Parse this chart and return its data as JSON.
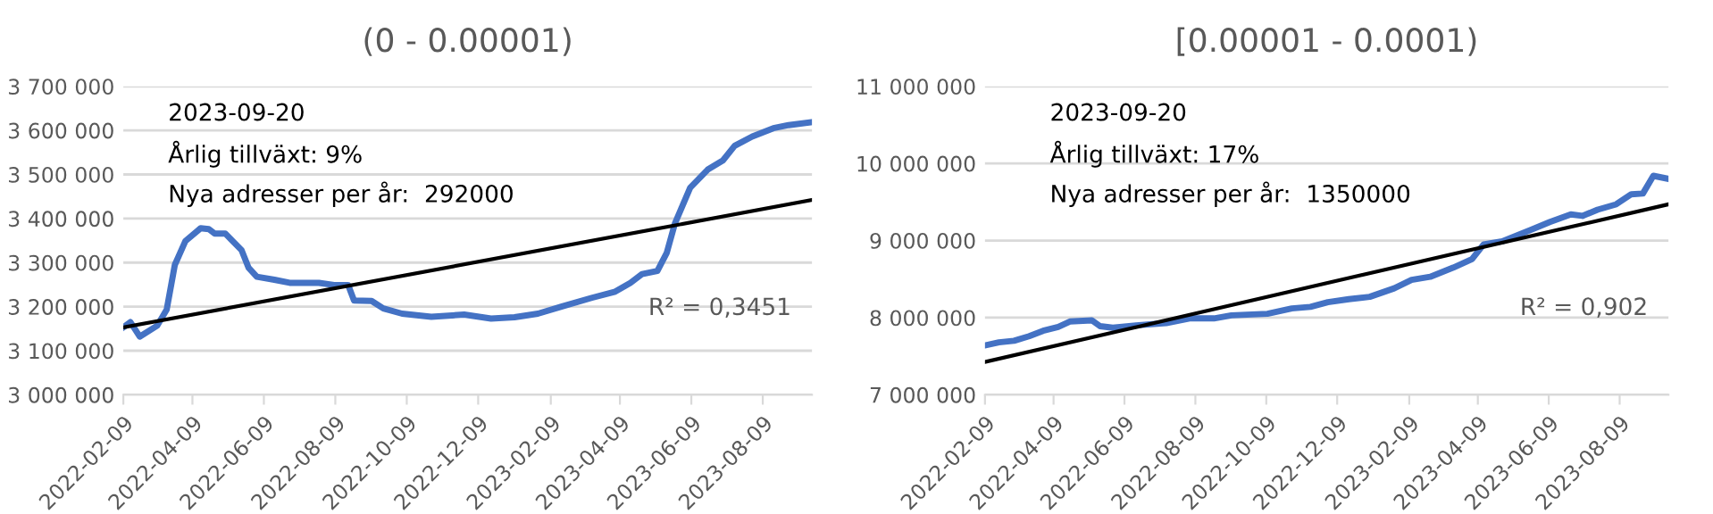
{
  "chart_data": [
    {
      "type": "line",
      "title": "(0 - 0.00001)",
      "x": [
        "2022-02-09",
        "2022-02-15",
        "2022-02-23",
        "2022-03-10",
        "2022-03-18",
        "2022-03-25",
        "2022-04-03",
        "2022-04-16",
        "2022-04-23",
        "2022-04-28",
        "2022-05-07",
        "2022-05-21",
        "2022-05-27",
        "2022-06-03",
        "2022-06-18",
        "2022-07-01",
        "2022-07-26",
        "2022-08-08",
        "2022-08-20",
        "2022-08-25",
        "2022-09-09",
        "2022-09-19",
        "2022-10-05",
        "2022-10-30",
        "2022-11-27",
        "2022-12-20",
        "2023-01-09",
        "2023-01-29",
        "2023-02-18",
        "2023-03-16",
        "2023-04-05",
        "2023-04-18",
        "2023-04-28",
        "2023-05-11",
        "2023-05-19",
        "2023-05-26",
        "2023-06-08",
        "2023-06-23",
        "2023-07-06",
        "2023-07-16",
        "2023-07-31",
        "2023-08-18",
        "2023-08-31",
        "2023-09-20"
      ],
      "series": [
        {
          "color": "#4472c4",
          "values": [
            3153000,
            3165000,
            3132000,
            3157000,
            3193000,
            3295000,
            3349000,
            3378000,
            3376000,
            3366000,
            3366000,
            3328000,
            3288000,
            3268000,
            3261000,
            3254000,
            3254000,
            3249000,
            3249000,
            3214000,
            3213000,
            3196000,
            3184000,
            3177000,
            3182000,
            3173000,
            3176000,
            3184000,
            3200000,
            3220000,
            3234000,
            3254000,
            3274000,
            3281000,
            3322000,
            3389000,
            3470000,
            3511000,
            3532000,
            3565000,
            3586000,
            3605000,
            3612000,
            3619000
          ]
        },
        {
          "type": "line",
          "color": "#000000",
          "x": [
            "2022-02-09",
            "2023-09-20"
          ],
          "values": [
            3153000,
            3442000
          ]
        }
      ],
      "xlim": [
        "2022-02-09",
        "2023-09-20"
      ],
      "xticks": [
        "2022-02-09",
        "2022-04-09",
        "2022-06-09",
        "2022-08-09",
        "2022-10-09",
        "2022-12-09",
        "2023-02-09",
        "2023-04-09",
        "2023-06-09",
        "2023-08-09"
      ],
      "ylim": [
        3000000,
        3700000
      ],
      "yticks": [
        {
          "value": 3000000,
          "label": "3 000 000"
        },
        {
          "value": 3100000,
          "label": "3 100 000"
        },
        {
          "value": 3200000,
          "label": "3 200 000"
        },
        {
          "value": 3300000,
          "label": "3 300 000"
        },
        {
          "value": 3400000,
          "label": "3 400 000"
        },
        {
          "value": 3500000,
          "label": "3 500 000"
        },
        {
          "value": 3600000,
          "label": "3 600 000"
        },
        {
          "value": 3700000,
          "label": "3 700 000"
        }
      ],
      "grid": "y",
      "legend": false,
      "marker": "none",
      "line_style": "solid",
      "annotations": [
        "2023-09-20",
        "Årlig tillväxt: 9%",
        "Nya adresser per år:  292000",
        "R² = 0,3451"
      ]
    },
    {
      "type": "line",
      "title": "[0.00001 - 0.0001)",
      "x": [
        "2022-02-09",
        "2022-02-21",
        "2022-03-06",
        "2022-03-19",
        "2022-03-31",
        "2022-04-13",
        "2022-04-23",
        "2022-05-12",
        "2022-05-19",
        "2022-05-30",
        "2022-06-19",
        "2022-07-15",
        "2022-08-04",
        "2022-08-25",
        "2022-09-09",
        "2022-10-10",
        "2022-10-31",
        "2022-11-16",
        "2022-12-01",
        "2022-12-19",
        "2023-01-06",
        "2023-01-27",
        "2023-02-11",
        "2023-02-27",
        "2023-03-19",
        "2023-04-04",
        "2023-04-14",
        "2023-04-30",
        "2023-05-20",
        "2023-06-10",
        "2023-06-28",
        "2023-07-08",
        "2023-07-21",
        "2023-08-06",
        "2023-08-19",
        "2023-08-29",
        "2023-09-07",
        "2023-09-20"
      ],
      "series": [
        {
          "color": "#4472c4",
          "values": [
            7640000,
            7680000,
            7700000,
            7760000,
            7830000,
            7880000,
            7950000,
            7965000,
            7890000,
            7870000,
            7900000,
            7930000,
            7990000,
            7990000,
            8030000,
            8050000,
            8120000,
            8140000,
            8200000,
            8240000,
            8270000,
            8380000,
            8490000,
            8530000,
            8650000,
            8760000,
            8950000,
            8990000,
            9110000,
            9240000,
            9340000,
            9320000,
            9400000,
            9470000,
            9600000,
            9610000,
            9840000,
            9800000
          ]
        },
        {
          "type": "line",
          "color": "#000000",
          "x": [
            "2022-02-09",
            "2023-09-20"
          ],
          "values": [
            7425000,
            9470000
          ]
        }
      ],
      "xlim": [
        "2022-02-09",
        "2023-09-20"
      ],
      "xticks": [
        "2022-02-09",
        "2022-04-09",
        "2022-06-09",
        "2022-08-09",
        "2022-10-09",
        "2022-12-09",
        "2023-02-09",
        "2023-04-09",
        "2023-06-09",
        "2023-08-09"
      ],
      "ylim": [
        7000000,
        11000000
      ],
      "yticks": [
        {
          "value": 7000000,
          "label": "7 000 000"
        },
        {
          "value": 8000000,
          "label": "8 000 000"
        },
        {
          "value": 9000000,
          "label": "9 000 000"
        },
        {
          "value": 10000000,
          "label": "10 000 000"
        },
        {
          "value": 11000000,
          "label": "11 000 000"
        }
      ],
      "grid": "y",
      "legend": false,
      "marker": "none",
      "line_style": "solid",
      "annotations": [
        "2023-09-20",
        "Årlig tillväxt: 17%",
        "Nya adresser per år:  1350000",
        "R² = 0,902"
      ]
    }
  ]
}
